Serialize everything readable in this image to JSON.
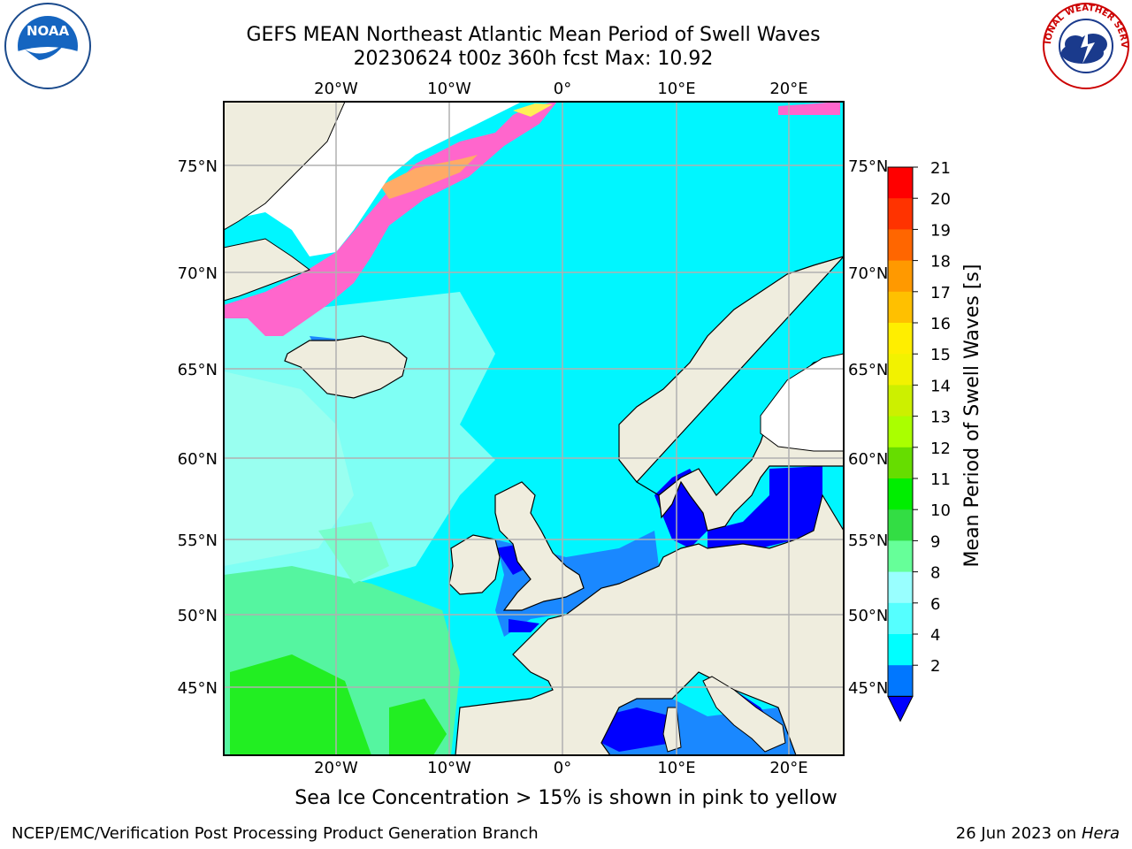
{
  "header": {
    "title_line1": "GEFS MEAN Northeast Atlantic Mean Period of Swell Waves",
    "title_line2": "20230624 t00z 360h fcst   Max: 10.92"
  },
  "logos": {
    "left_text": "NOAA",
    "right_text": "NATIONAL WEATHER SERVICE"
  },
  "map": {
    "lon_labels_top": [
      "20°W",
      "10°W",
      "0°",
      "10°E",
      "20°E"
    ],
    "lon_labels_bottom": [
      "20°W",
      "10°W",
      "0°",
      "10°E",
      "20°E"
    ],
    "lat_labels_left": [
      "75°N",
      "70°N",
      "65°N",
      "60°N",
      "55°N",
      "50°N",
      "45°N"
    ],
    "lat_labels_right": [
      "75°N",
      "70°N",
      "65°N",
      "60°N",
      "55°N",
      "50°N",
      "45°N"
    ],
    "colors": {
      "land": "#efedde",
      "ice_land": "#ffffff",
      "coast": "#000000",
      "grid": "#b0b0b0"
    }
  },
  "colorbar": {
    "label": "Mean Period of Swell Waves [s]",
    "ticks": [
      "21",
      "20",
      "19",
      "18",
      "17",
      "16",
      "15",
      "14",
      "13",
      "12",
      "11",
      "10",
      "9",
      "8",
      "6",
      "4",
      "2"
    ],
    "colors": [
      "#ff0000",
      "#ff3300",
      "#ff6600",
      "#ff9900",
      "#ffc000",
      "#ffee00",
      "#f2f200",
      "#ccf000",
      "#aaff00",
      "#66dd00",
      "#00ee00",
      "#33dd44",
      "#66ff99",
      "#99ffff",
      "#55ffff",
      "#00ffff",
      "#0077ff",
      "#0000ff"
    ]
  },
  "chart_data": {
    "type": "heatmap",
    "variable": "Mean Period of Swell Waves [s]",
    "max": 10.92,
    "color_levels": [
      2,
      4,
      6,
      8,
      9,
      10,
      11,
      12,
      13,
      14,
      15,
      16,
      17,
      18,
      19,
      20,
      21
    ],
    "lon_ticks": [
      "20°W",
      "10°W",
      "0°",
      "10°E",
      "20°E"
    ],
    "lat_ticks": [
      "45°N",
      "50°N",
      "55°N",
      "60°N",
      "65°N",
      "70°N",
      "75°N"
    ]
  },
  "notes": {
    "sea_ice": "Sea Ice Concentration > 15% is shown in pink to yellow"
  },
  "footer": {
    "left": "NCEP/EMC/Verification Post Processing Product Generation Branch",
    "date": "26 Jun 2023 on",
    "machine": "Hera"
  }
}
